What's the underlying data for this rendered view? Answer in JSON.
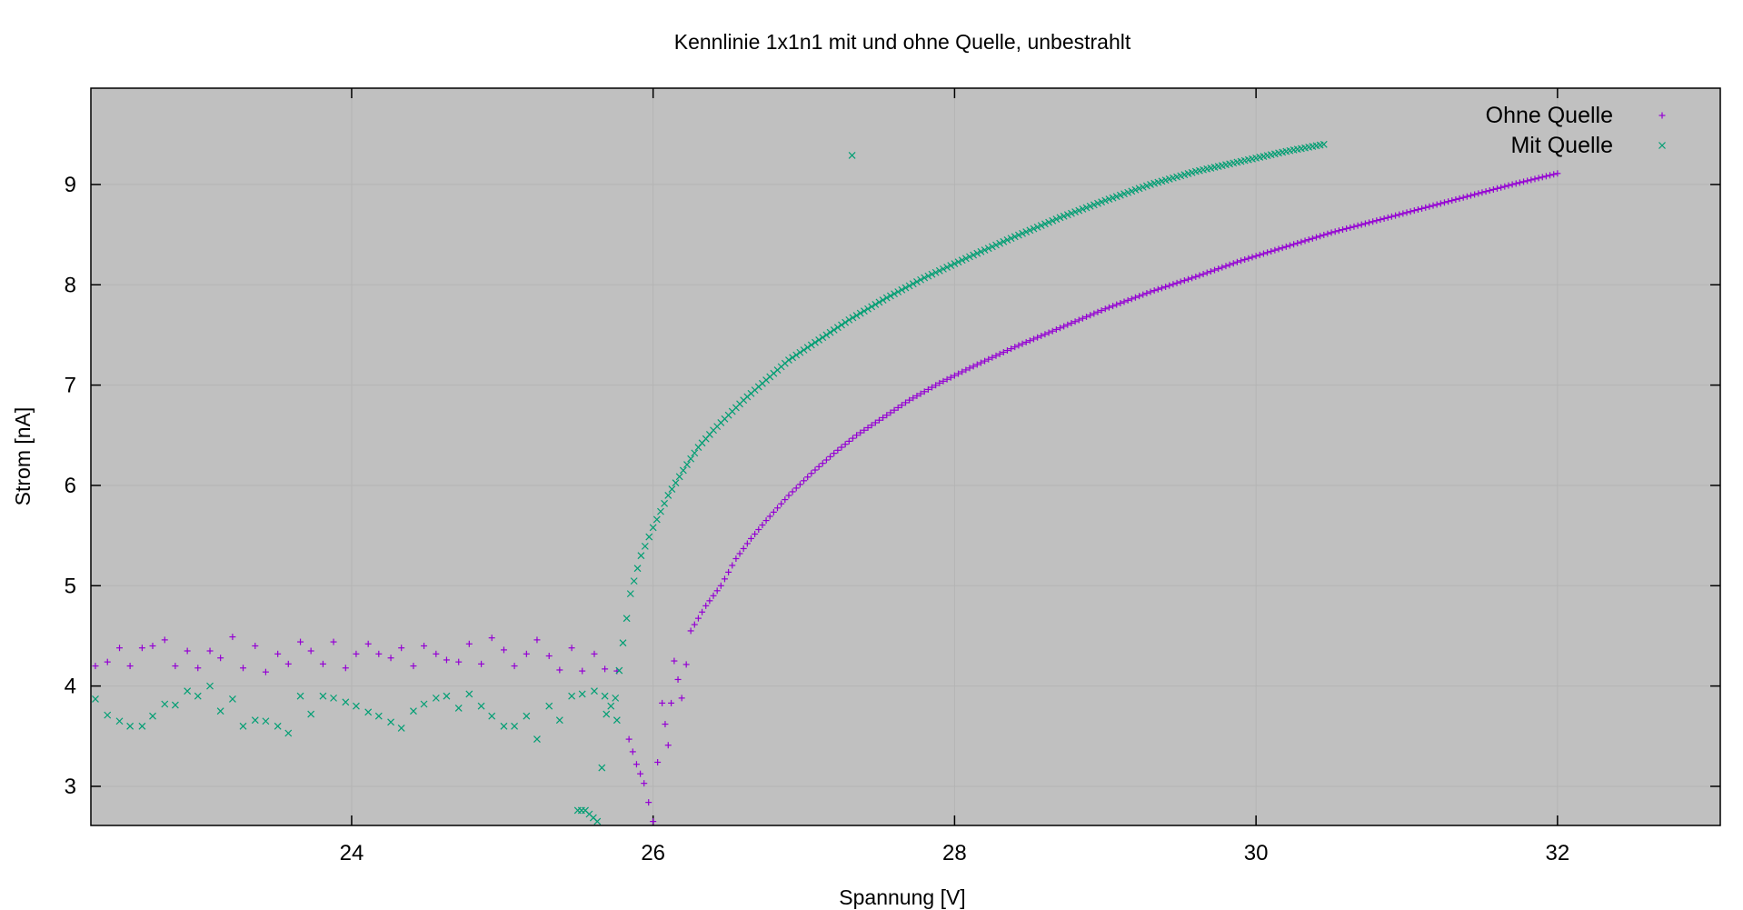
{
  "chart_data": {
    "type": "scatter",
    "title": "Kennlinie 1x1n1 mit und ohne Quelle, unbestrahlt",
    "xlabel": "Spannung [V]",
    "ylabel": "Strom [nA]",
    "xlim": [
      22.27,
      33.08
    ],
    "ylim": [
      2.61,
      9.96
    ],
    "xticks": [
      24,
      26,
      28,
      30,
      32
    ],
    "yticks": [
      3,
      4,
      5,
      6,
      7,
      8,
      9
    ],
    "xtick_labels": [
      "24",
      "26",
      "28",
      "30",
      "32"
    ],
    "ytick_labels": [
      "3",
      "4",
      "5",
      "6",
      "7",
      "8",
      "9"
    ],
    "grid": true,
    "legend_position": "top-right",
    "background": "#c0c0c0",
    "series": [
      {
        "name": "Ohne Quelle",
        "marker": "+",
        "color": "#9400d3",
        "noise": [
          [
            22.3,
            4.2
          ],
          [
            22.38,
            4.24
          ],
          [
            22.46,
            4.38
          ],
          [
            22.53,
            4.2
          ],
          [
            22.61,
            4.38
          ],
          [
            22.68,
            4.4
          ],
          [
            22.76,
            4.46
          ],
          [
            22.83,
            4.2
          ],
          [
            22.91,
            4.35
          ],
          [
            22.98,
            4.18
          ],
          [
            23.06,
            4.35
          ],
          [
            23.13,
            4.28
          ],
          [
            23.21,
            4.49
          ],
          [
            23.28,
            4.18
          ],
          [
            23.36,
            4.4
          ],
          [
            23.43,
            4.14
          ],
          [
            23.51,
            4.32
          ],
          [
            23.58,
            4.22
          ],
          [
            23.66,
            4.44
          ],
          [
            23.73,
            4.35
          ],
          [
            23.81,
            4.22
          ],
          [
            23.88,
            4.44
          ],
          [
            23.96,
            4.18
          ],
          [
            24.03,
            4.32
          ],
          [
            24.11,
            4.42
          ],
          [
            24.18,
            4.32
          ],
          [
            24.26,
            4.28
          ],
          [
            24.33,
            4.38
          ],
          [
            24.41,
            4.2
          ],
          [
            24.48,
            4.4
          ],
          [
            24.56,
            4.32
          ],
          [
            24.63,
            4.26
          ],
          [
            24.71,
            4.24
          ],
          [
            24.78,
            4.42
          ],
          [
            24.86,
            4.22
          ],
          [
            24.93,
            4.48
          ],
          [
            25.01,
            4.36
          ],
          [
            25.08,
            4.2
          ],
          [
            25.16,
            4.32
          ],
          [
            25.23,
            4.46
          ],
          [
            25.31,
            4.3
          ],
          [
            25.38,
            4.16
          ],
          [
            25.46,
            4.38
          ],
          [
            25.53,
            4.15
          ],
          [
            25.61,
            4.32
          ],
          [
            25.68,
            4.17
          ],
          [
            25.76,
            4.15
          ]
        ],
        "curve": [
          [
            25.84,
            3.47
          ],
          [
            25.89,
            3.22
          ],
          [
            25.94,
            3.03
          ],
          [
            26.0,
            2.65
          ],
          [
            26.06,
            3.83
          ],
          [
            26.1,
            3.41
          ],
          [
            26.14,
            4.25
          ],
          [
            26.19,
            3.88
          ],
          [
            26.25,
            4.55
          ],
          [
            26.35,
            4.8
          ],
          [
            26.45,
            5.0
          ],
          [
            26.55,
            5.27
          ],
          [
            26.65,
            5.47
          ],
          [
            26.75,
            5.65
          ],
          [
            26.9,
            5.9
          ],
          [
            27.05,
            6.12
          ],
          [
            27.2,
            6.32
          ],
          [
            27.35,
            6.5
          ],
          [
            27.5,
            6.65
          ],
          [
            27.7,
            6.85
          ],
          [
            27.9,
            7.02
          ],
          [
            28.1,
            7.17
          ],
          [
            28.4,
            7.38
          ],
          [
            28.7,
            7.57
          ],
          [
            29.0,
            7.76
          ],
          [
            29.3,
            7.93
          ],
          [
            29.6,
            8.08
          ],
          [
            29.9,
            8.24
          ],
          [
            30.2,
            8.38
          ],
          [
            30.5,
            8.52
          ],
          [
            30.8,
            8.64
          ],
          [
            31.1,
            8.76
          ],
          [
            31.4,
            8.88
          ],
          [
            31.7,
            9.0
          ],
          [
            32.0,
            9.11
          ]
        ]
      },
      {
        "name": "Mit Quelle",
        "marker": "x",
        "color": "#009e73",
        "noise": [
          [
            22.3,
            3.87
          ],
          [
            22.38,
            3.71
          ],
          [
            22.46,
            3.65
          ],
          [
            22.53,
            3.6
          ],
          [
            22.61,
            3.6
          ],
          [
            22.68,
            3.7
          ],
          [
            22.76,
            3.82
          ],
          [
            22.83,
            3.81
          ],
          [
            22.91,
            3.95
          ],
          [
            22.98,
            3.9
          ],
          [
            23.06,
            4.0
          ],
          [
            23.13,
            3.75
          ],
          [
            23.21,
            3.87
          ],
          [
            23.28,
            3.6
          ],
          [
            23.36,
            3.66
          ],
          [
            23.43,
            3.65
          ],
          [
            23.51,
            3.6
          ],
          [
            23.58,
            3.53
          ],
          [
            23.66,
            3.9
          ],
          [
            23.73,
            3.72
          ],
          [
            23.81,
            3.9
          ],
          [
            23.88,
            3.88
          ],
          [
            23.96,
            3.84
          ],
          [
            24.03,
            3.8
          ],
          [
            24.11,
            3.74
          ],
          [
            24.18,
            3.7
          ],
          [
            24.26,
            3.64
          ],
          [
            24.33,
            3.58
          ],
          [
            24.41,
            3.75
          ],
          [
            24.48,
            3.82
          ],
          [
            24.56,
            3.88
          ],
          [
            24.63,
            3.9
          ],
          [
            24.71,
            3.78
          ],
          [
            24.78,
            3.92
          ],
          [
            24.86,
            3.8
          ],
          [
            24.93,
            3.7
          ],
          [
            25.01,
            3.6
          ],
          [
            25.08,
            3.6
          ],
          [
            25.16,
            3.7
          ],
          [
            25.23,
            3.47
          ],
          [
            25.31,
            3.8
          ],
          [
            25.38,
            3.66
          ],
          [
            25.46,
            3.9
          ],
          [
            25.53,
            3.92
          ],
          [
            25.61,
            3.95
          ],
          [
            25.68,
            3.9
          ],
          [
            25.76,
            3.66
          ]
        ],
        "curve": [
          [
            25.5,
            2.76
          ],
          [
            25.55,
            2.76
          ],
          [
            25.63,
            2.65
          ],
          [
            25.69,
            3.72
          ],
          [
            25.75,
            3.88
          ],
          [
            25.8,
            4.43
          ],
          [
            25.85,
            4.92
          ],
          [
            25.92,
            5.3
          ],
          [
            26.0,
            5.58
          ],
          [
            26.1,
            5.9
          ],
          [
            26.2,
            6.15
          ],
          [
            26.3,
            6.38
          ],
          [
            26.4,
            6.55
          ],
          [
            26.5,
            6.7
          ],
          [
            26.6,
            6.85
          ],
          [
            26.75,
            7.05
          ],
          [
            26.9,
            7.25
          ],
          [
            27.1,
            7.45
          ],
          [
            27.3,
            7.65
          ],
          [
            27.55,
            7.87
          ],
          [
            27.8,
            8.07
          ],
          [
            28.1,
            8.28
          ],
          [
            28.4,
            8.48
          ],
          [
            28.7,
            8.67
          ],
          [
            29.0,
            8.84
          ],
          [
            29.3,
            9.0
          ],
          [
            29.6,
            9.13
          ],
          [
            29.9,
            9.23
          ],
          [
            30.2,
            9.33
          ],
          [
            30.45,
            9.4
          ]
        ],
        "outliers": [
          [
            27.32,
            9.29
          ]
        ]
      }
    ]
  }
}
